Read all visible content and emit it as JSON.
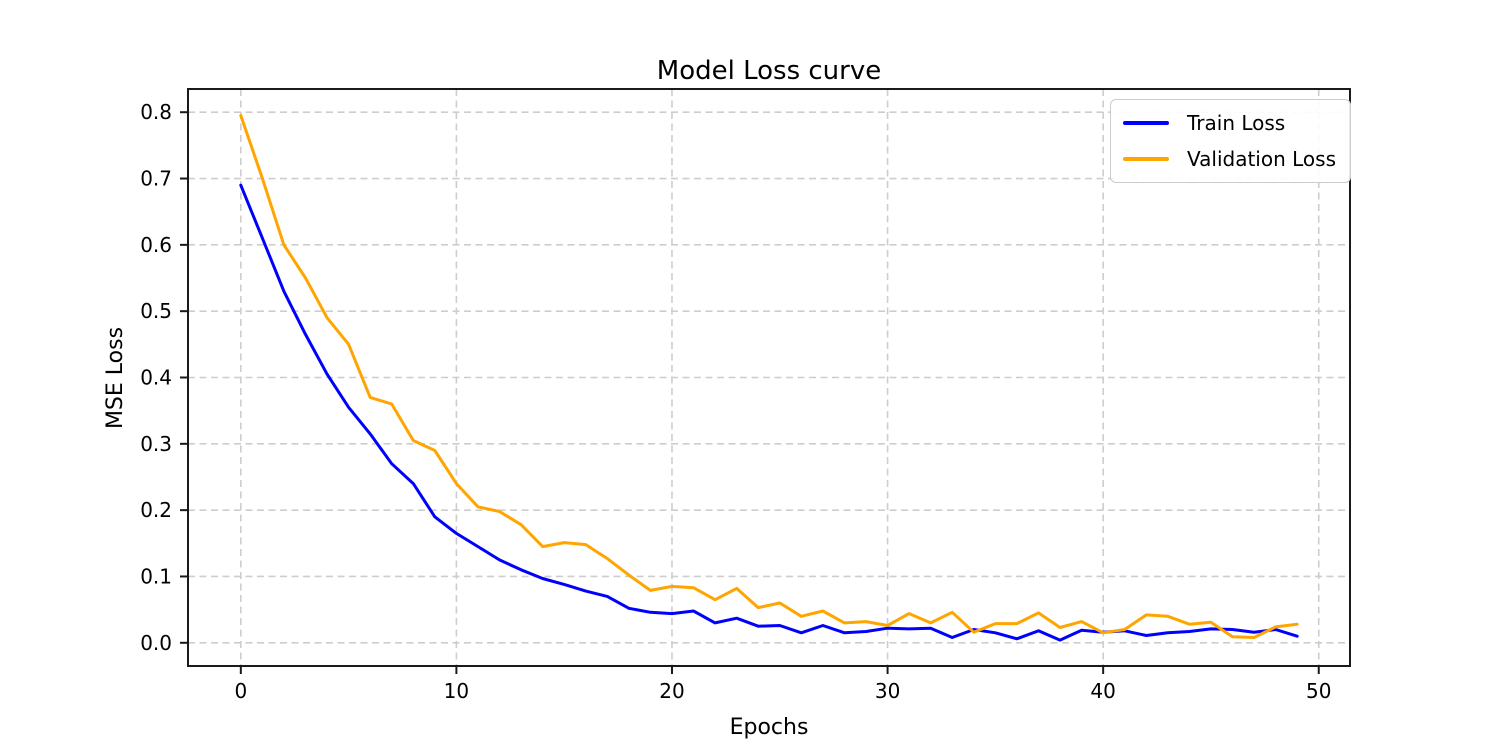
{
  "chart_data": {
    "type": "line",
    "title": "Model Loss curve",
    "xlabel": "Epochs",
    "ylabel": "MSE Loss",
    "xlim": [
      -2.45,
      51.45
    ],
    "ylim": [
      -0.035,
      0.835
    ],
    "xticks": [
      0,
      10,
      20,
      30,
      40,
      50
    ],
    "yticks": [
      0.0,
      0.1,
      0.2,
      0.3,
      0.4,
      0.5,
      0.6,
      0.7,
      0.8
    ],
    "grid": true,
    "grid_style": "dashed",
    "legend_position": "upper right",
    "colors": {
      "grid": "#cdcdcd",
      "axis": "#1a1a1a",
      "text": "#000000",
      "background": "#ffffff"
    },
    "x": [
      0,
      1,
      2,
      3,
      4,
      5,
      6,
      7,
      8,
      9,
      10,
      11,
      12,
      13,
      14,
      15,
      16,
      17,
      18,
      19,
      20,
      21,
      22,
      23,
      24,
      25,
      26,
      27,
      28,
      29,
      30,
      31,
      32,
      33,
      34,
      35,
      36,
      37,
      38,
      39,
      40,
      41,
      42,
      43,
      44,
      45,
      46,
      47,
      48,
      49
    ],
    "series": [
      {
        "name": "Train Loss",
        "color": "#0000ff",
        "values": [
          0.69,
          0.61,
          0.53,
          0.465,
          0.405,
          0.355,
          0.315,
          0.27,
          0.24,
          0.19,
          0.165,
          0.145,
          0.125,
          0.11,
          0.097,
          0.088,
          0.078,
          0.07,
          0.052,
          0.046,
          0.044,
          0.048,
          0.03,
          0.037,
          0.025,
          0.026,
          0.015,
          0.026,
          0.015,
          0.017,
          0.022,
          0.021,
          0.022,
          0.008,
          0.02,
          0.015,
          0.006,
          0.018,
          0.004,
          0.019,
          0.016,
          0.018,
          0.011,
          0.015,
          0.017,
          0.021,
          0.02,
          0.016,
          0.02,
          0.01
        ]
      },
      {
        "name": "Validation Loss",
        "color": "#ffa500",
        "values": [
          0.795,
          0.7,
          0.6,
          0.55,
          0.49,
          0.45,
          0.37,
          0.36,
          0.305,
          0.29,
          0.24,
          0.205,
          0.198,
          0.178,
          0.145,
          0.151,
          0.148,
          0.127,
          0.102,
          0.079,
          0.085,
          0.083,
          0.065,
          0.082,
          0.053,
          0.06,
          0.04,
          0.048,
          0.03,
          0.032,
          0.026,
          0.044,
          0.03,
          0.046,
          0.016,
          0.029,
          0.029,
          0.045,
          0.023,
          0.032,
          0.015,
          0.02,
          0.042,
          0.04,
          0.028,
          0.031,
          0.009,
          0.008,
          0.024,
          0.028
        ]
      }
    ]
  }
}
